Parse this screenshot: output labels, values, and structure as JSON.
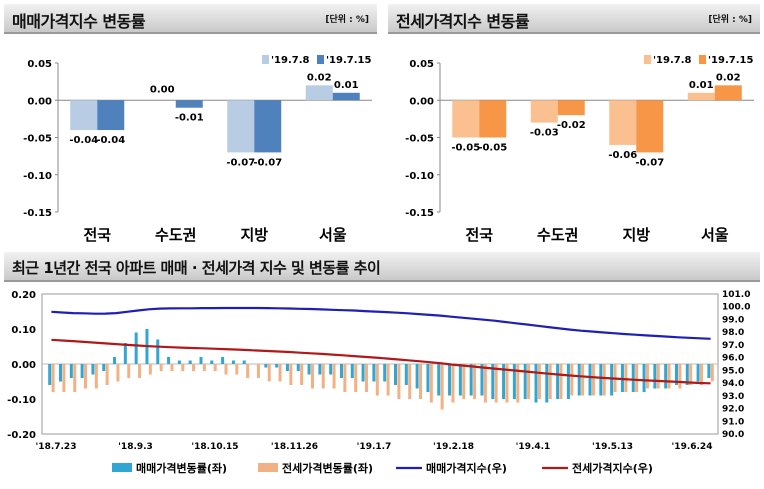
{
  "panel_left": {
    "title": "매매가격지수 변동률",
    "unit": "[단위 : %]"
  },
  "panel_right": {
    "title": "전세가격지수 변동률",
    "unit": "[단위 : %]"
  },
  "panel_bottom": {
    "title": "최근 1년간 전국 아파트 매매 · 전세가격 지수 및 변동률 추이"
  },
  "colors": {
    "sale_prev": "#b8cce4",
    "sale_curr": "#4f81bd",
    "jeonse_prev": "#fac090",
    "jeonse_curr": "#f79646",
    "sale_rate": "#31a6d2",
    "jeonse_rate": "#f2b184",
    "sale_index": "#1f1fb4",
    "jeonse_index": "#b01919"
  },
  "chart_data": [
    {
      "type": "bar",
      "title": "매매가격지수 변동률",
      "categories": [
        "전국",
        "수도권",
        "지방",
        "서울"
      ],
      "series": [
        {
          "name": "'19.7.8",
          "values": [
            -0.04,
            0.0,
            -0.07,
            0.02
          ],
          "labels": [
            "-0.04",
            "0.00",
            "-0.07",
            "0.02"
          ]
        },
        {
          "name": "'19.7.15",
          "values": [
            -0.04,
            -0.01,
            -0.07,
            0.01
          ],
          "labels": [
            "-0.04",
            "-0.01",
            "-0.07",
            "0.01"
          ]
        }
      ],
      "ylim": [
        -0.15,
        0.05
      ],
      "yticks": [
        "0.05",
        "0.00",
        "-0.05",
        "-0.10",
        "-0.15"
      ],
      "legend": "top-right"
    },
    {
      "type": "bar",
      "title": "전세가격지수 변동률",
      "categories": [
        "전국",
        "수도권",
        "지방",
        "서울"
      ],
      "series": [
        {
          "name": "'19.7.8",
          "values": [
            -0.05,
            -0.03,
            -0.06,
            0.01
          ],
          "labels": [
            "-0.05",
            "-0.03",
            "-0.06",
            "0.01"
          ]
        },
        {
          "name": "'19.7.15",
          "values": [
            -0.05,
            -0.02,
            -0.07,
            0.02
          ],
          "labels": [
            "-0.05",
            "-0.02",
            "-0.07",
            "0.02"
          ]
        }
      ],
      "ylim": [
        -0.15,
        0.05
      ],
      "yticks": [
        "0.05",
        "0.00",
        "-0.05",
        "-0.10",
        "-0.15"
      ],
      "legend": "top-right"
    },
    {
      "type": "bar+line",
      "title": "최근 1년간 전국 아파트 매매 · 전세가격 지수 및 변동률 추이",
      "x_ticks": [
        "'18.7.23",
        "'18.9.3",
        "'18.10.15",
        "'18.11.26",
        "'19.1.7",
        "'19.2.18",
        "'19.4.1",
        "'19.5.13",
        "'19.6.24"
      ],
      "y_left_ticks": [
        "0.20",
        "0.10",
        "0.00",
        "-0.10",
        "-0.20"
      ],
      "y_left_lim": [
        -0.2,
        0.2
      ],
      "y_right_ticks": [
        "101.0",
        "100.0",
        "99.0",
        "98.0",
        "97.0",
        "96.0",
        "95.0",
        "94.0",
        "93.0",
        "92.0",
        "91.0",
        "90.0"
      ],
      "y_right_lim": [
        90.0,
        101.0
      ],
      "series": [
        {
          "name": "매매가격변동률(좌)",
          "kind": "bar",
          "axis": "left",
          "values": [
            -0.06,
            -0.05,
            -0.04,
            -0.04,
            -0.03,
            -0.02,
            0.02,
            0.06,
            0.09,
            0.1,
            0.07,
            0.02,
            0.01,
            0.01,
            0.02,
            0.01,
            0.02,
            0.01,
            0.01,
            0.0,
            -0.01,
            -0.01,
            -0.02,
            -0.02,
            -0.03,
            -0.03,
            -0.03,
            -0.04,
            -0.04,
            -0.05,
            -0.05,
            -0.05,
            -0.06,
            -0.06,
            -0.07,
            -0.08,
            -0.09,
            -0.09,
            -0.09,
            -0.09,
            -0.09,
            -0.1,
            -0.1,
            -0.1,
            -0.1,
            -0.11,
            -0.11,
            -0.1,
            -0.1,
            -0.09,
            -0.09,
            -0.09,
            -0.09,
            -0.08,
            -0.08,
            -0.08,
            -0.07,
            -0.07,
            -0.06,
            -0.06,
            -0.05,
            -0.04
          ]
        },
        {
          "name": "전세가격변동률(좌)",
          "kind": "bar",
          "axis": "left",
          "values": [
            -0.08,
            -0.08,
            -0.08,
            -0.07,
            -0.07,
            -0.06,
            -0.05,
            -0.04,
            -0.04,
            -0.03,
            -0.02,
            -0.02,
            -0.02,
            -0.02,
            -0.02,
            -0.02,
            -0.03,
            -0.03,
            -0.04,
            -0.04,
            -0.05,
            -0.05,
            -0.06,
            -0.06,
            -0.07,
            -0.07,
            -0.07,
            -0.08,
            -0.08,
            -0.08,
            -0.09,
            -0.09,
            -0.1,
            -0.1,
            -0.1,
            -0.11,
            -0.13,
            -0.11,
            -0.1,
            -0.1,
            -0.11,
            -0.11,
            -0.11,
            -0.11,
            -0.1,
            -0.1,
            -0.1,
            -0.1,
            -0.09,
            -0.09,
            -0.09,
            -0.09,
            -0.08,
            -0.08,
            -0.08,
            -0.07,
            -0.07,
            -0.07,
            -0.07,
            -0.06,
            -0.06,
            -0.05
          ]
        },
        {
          "name": "매매가격지수(우)",
          "kind": "line",
          "axis": "right",
          "values": [
            99.6,
            99.55,
            99.5,
            99.48,
            99.45,
            99.46,
            99.5,
            99.6,
            99.7,
            99.8,
            99.85,
            99.87,
            99.88,
            99.88,
            99.89,
            99.89,
            99.9,
            99.9,
            99.9,
            99.9,
            99.89,
            99.88,
            99.86,
            99.84,
            99.82,
            99.79,
            99.76,
            99.73,
            99.7,
            99.66,
            99.62,
            99.58,
            99.53,
            99.48,
            99.42,
            99.36,
            99.3,
            99.22,
            99.14,
            99.06,
            98.98,
            98.9,
            98.8,
            98.7,
            98.6,
            98.5,
            98.4,
            98.3,
            98.2,
            98.12,
            98.05,
            97.98,
            97.92,
            97.86,
            97.8,
            97.75,
            97.7,
            97.65,
            97.6,
            97.56,
            97.52,
            97.48
          ]
        },
        {
          "name": "전세가격지수(우)",
          "kind": "line",
          "axis": "right",
          "values": [
            97.4,
            97.35,
            97.3,
            97.24,
            97.18,
            97.12,
            97.06,
            97.0,
            96.95,
            96.9,
            96.86,
            96.82,
            96.79,
            96.76,
            96.73,
            96.7,
            96.67,
            96.64,
            96.6,
            96.56,
            96.52,
            96.48,
            96.44,
            96.39,
            96.34,
            96.29,
            96.24,
            96.18,
            96.12,
            96.06,
            96.0,
            95.93,
            95.86,
            95.79,
            95.72,
            95.64,
            95.56,
            95.46,
            95.38,
            95.3,
            95.22,
            95.14,
            95.06,
            94.98,
            94.9,
            94.82,
            94.74,
            94.67,
            94.6,
            94.53,
            94.47,
            94.41,
            94.36,
            94.31,
            94.26,
            94.21,
            94.17,
            94.13,
            94.09,
            94.05,
            94.01,
            93.98
          ]
        }
      ],
      "legend": "bottom"
    }
  ]
}
